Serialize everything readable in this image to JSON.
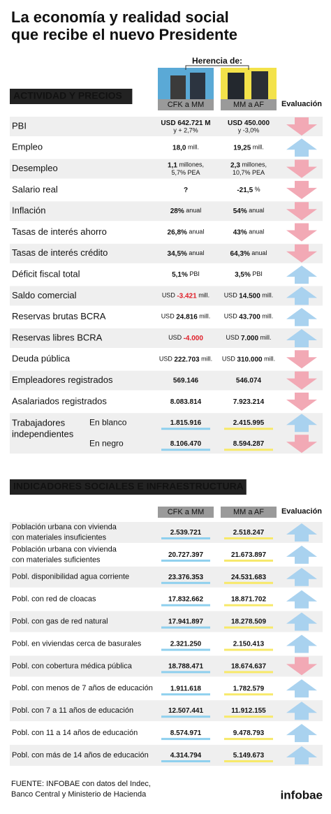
{
  "title": [
    "La economía y realidad social",
    "que recibe el nuevo Presidente"
  ],
  "herencia": "Herencia de:",
  "section1": {
    "title": "ACTIVIDAD Y PRECIOS",
    "columns": [
      "CFK a MM",
      "MM a AF"
    ],
    "evaluation": "Evaluación",
    "rows": [
      {
        "label": [
          "PBI"
        ],
        "cells": [
          {
            "val": "USD 642.721 M",
            "note": "y + 2,7%"
          },
          {
            "val": "USD 450.000",
            "note": "y -3,0%"
          }
        ],
        "eval": "down"
      },
      {
        "label": [
          "Empleo"
        ],
        "cells": [
          {
            "val": "18,0",
            "post": "mill."
          },
          {
            "val": "19,25",
            "post": "mill."
          }
        ],
        "eval": "up"
      },
      {
        "label": [
          "Desempleo"
        ],
        "cells": [
          {
            "val": "1,1",
            "post": "millones,",
            "note": "5,7% PEA"
          },
          {
            "val": "2,3",
            "post": "millones,",
            "note": "10,7% PEA"
          }
        ],
        "eval": "down"
      },
      {
        "label": [
          "Salario real"
        ],
        "cells": [
          {
            "val": "?"
          },
          {
            "val": "-21,5",
            "post": "%"
          }
        ],
        "eval": "down"
      },
      {
        "label": [
          "Inflación"
        ],
        "cells": [
          {
            "val": "28%",
            "post": "anual"
          },
          {
            "val": "54%",
            "post": "anual"
          }
        ],
        "eval": "down"
      },
      {
        "label": [
          "Tasas de interés ahorro"
        ],
        "cells": [
          {
            "val": "26,8%",
            "post": "anual"
          },
          {
            "val": "43%",
            "post": "anual"
          }
        ],
        "eval": "down"
      },
      {
        "label": [
          "Tasas de interés crédito"
        ],
        "cells": [
          {
            "val": "34,5%",
            "post": "anual"
          },
          {
            "val": "64,3%",
            "post": "anual"
          }
        ],
        "eval": "down"
      },
      {
        "label": [
          "Déficit fiscal total"
        ],
        "cells": [
          {
            "val": "5,1%",
            "post": "PBI"
          },
          {
            "val": "3,5%",
            "post": "PBI"
          }
        ],
        "eval": "up"
      },
      {
        "label": [
          "Saldo comercial"
        ],
        "cells": [
          {
            "pre": "USD",
            "val": "-3.421",
            "post": "mill.",
            "red": true
          },
          {
            "pre": "USD",
            "val": "14.500",
            "post": "mill."
          }
        ],
        "eval": "up"
      },
      {
        "label": [
          "Reservas brutas BCRA"
        ],
        "cells": [
          {
            "pre": "USD",
            "val": "24.816",
            "post": "mill."
          },
          {
            "pre": "USD",
            "val": "43.700",
            "post": "mill."
          }
        ],
        "eval": "up"
      },
      {
        "label": [
          "Reservas libres BCRA"
        ],
        "cells": [
          {
            "pre": "USD",
            "val": "-4.000",
            "red": true
          },
          {
            "pre": "USD",
            "val": "7.000",
            "post": "mill."
          }
        ],
        "eval": "up"
      },
      {
        "label": [
          "Deuda pública"
        ],
        "cells": [
          {
            "pre": "USD",
            "val": "222.703",
            "post": "mill."
          },
          {
            "pre": "USD",
            "val": "310.000",
            "post": "mill."
          }
        ],
        "eval": "down"
      },
      {
        "label": [
          "Empleadores registrados"
        ],
        "cells": [
          {
            "val": "569.146"
          },
          {
            "val": "546.074"
          }
        ],
        "eval": "down"
      },
      {
        "label": [
          "Asalariados registrados"
        ],
        "cells": [
          {
            "val": "8.083.814"
          },
          {
            "val": "7.923.214"
          }
        ],
        "eval": "down"
      }
    ],
    "group": {
      "label": [
        "Trabajadores",
        "independientes"
      ],
      "rows": [
        {
          "label": [
            "En blanco"
          ],
          "cells": [
            {
              "val": "1.815.916"
            },
            {
              "val": "2.415.995"
            }
          ],
          "eval": "up"
        },
        {
          "label": [
            "En negro"
          ],
          "cells": [
            {
              "val": "8.106.470"
            },
            {
              "val": "8.594.287"
            }
          ],
          "eval": "down"
        }
      ]
    }
  },
  "section2": {
    "title": "INDICADORES SOCIALES E INFRAESTRUCTURA",
    "columns": [
      "CFK a MM",
      "MM a AF"
    ],
    "evaluation": "Evaluación",
    "rows": [
      {
        "label": [
          "Población urbana con vivienda",
          "con materiales insuficientes"
        ],
        "cells": [
          {
            "val": "2.539.721"
          },
          {
            "val": "2.518.247"
          }
        ],
        "eval": "up"
      },
      {
        "label": [
          "Población urbana con vivienda",
          "con materiales suficientes"
        ],
        "cells": [
          {
            "val": "20.727.397"
          },
          {
            "val": "21.673.897"
          }
        ],
        "eval": "up"
      },
      {
        "label": [
          "Pobl. disponibilidad agua corriente"
        ],
        "cells": [
          {
            "val": "23.376.353"
          },
          {
            "val": "24.531.683"
          }
        ],
        "eval": "up"
      },
      {
        "label": [
          "Pobl. con red de cloacas"
        ],
        "cells": [
          {
            "val": "17.832.662"
          },
          {
            "val": "18.871.702"
          }
        ],
        "eval": "up"
      },
      {
        "label": [
          "Pobl. con gas de red natural"
        ],
        "cells": [
          {
            "val": "17.941.897"
          },
          {
            "val": "18.278.509"
          }
        ],
        "eval": "up"
      },
      {
        "label": [
          "Pobl. en viviendas cerca de basurales"
        ],
        "cells": [
          {
            "val": "2.321.250"
          },
          {
            "val": "2.150.413"
          }
        ],
        "eval": "up"
      },
      {
        "label": [
          "Pobl. con cobertura médica pública"
        ],
        "cells": [
          {
            "val": "18.788.471"
          },
          {
            "val": "18.674.637"
          }
        ],
        "eval": "down"
      },
      {
        "label": [
          "Pobl. con menos de 7 años de educación"
        ],
        "cells": [
          {
            "val": "1.911.618"
          },
          {
            "val": "1.782.579"
          }
        ],
        "eval": "up"
      },
      {
        "label": [
          "Pobl. con 7 a 11 años de educación"
        ],
        "cells": [
          {
            "val": "12.507.441"
          },
          {
            "val": "11.912.155"
          }
        ],
        "eval": "up"
      },
      {
        "label": [
          "Pobl. con 11 a 14 años de educación"
        ],
        "cells": [
          {
            "val": "8.574.971"
          },
          {
            "val": "9.478.793"
          }
        ],
        "eval": "up"
      },
      {
        "label": [
          "Pobl. con más de 14 años de educación"
        ],
        "cells": [
          {
            "val": "4.314.794"
          },
          {
            "val": "5.149.673"
          }
        ],
        "eval": "up"
      }
    ]
  },
  "footer": {
    "source": [
      "FUENTE: INFOBAE con datos del Indec,",
      "Banco Central y Ministerio de Hacienda"
    ],
    "logo": "infobae"
  }
}
